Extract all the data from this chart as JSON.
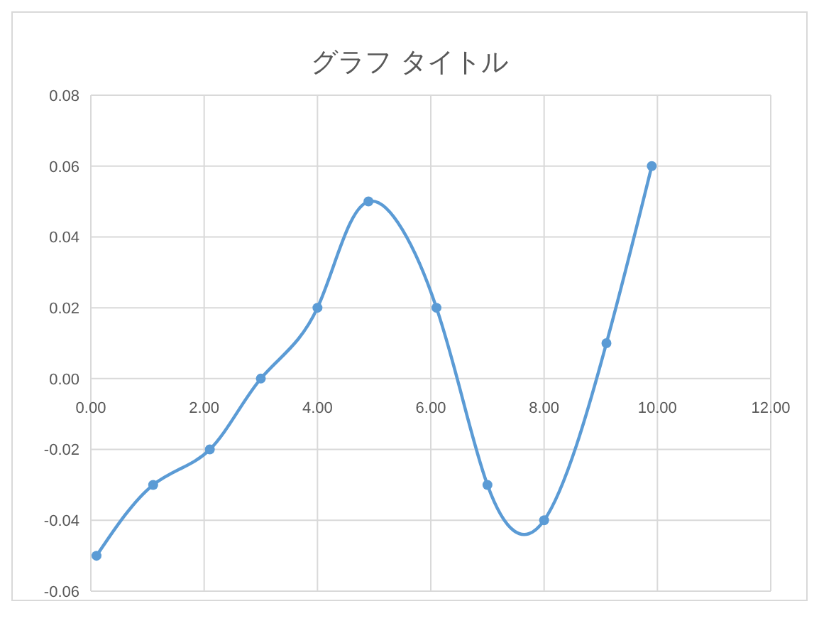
{
  "chart_data": {
    "type": "line",
    "title": "グラフ タイトル",
    "x": [
      0.1,
      1.1,
      2.1,
      3.0,
      4.0,
      4.9,
      6.1,
      7.0,
      8.0,
      9.1,
      9.9
    ],
    "series": [
      {
        "color": "#5b9bd5",
        "values": [
          -0.05,
          -0.03,
          -0.02,
          0,
          0.02,
          0.05,
          0.02,
          -0.03,
          -0.04,
          0.01,
          0.06
        ]
      }
    ],
    "xlim": [
      0,
      12
    ],
    "xticks": [
      {
        "value": 0,
        "label": "0.00"
      },
      {
        "value": 2,
        "label": "2.00"
      },
      {
        "value": 4,
        "label": "4.00"
      },
      {
        "value": 6,
        "label": "6.00"
      },
      {
        "value": 8,
        "label": "8.00"
      },
      {
        "value": 10,
        "label": "10.00"
      },
      {
        "value": 12,
        "label": "12.00"
      }
    ],
    "ylim": [
      -0.06,
      0.08
    ],
    "yticks": [
      {
        "value": -0.06,
        "label": "-0.06"
      },
      {
        "value": -0.04,
        "label": "-0.04"
      },
      {
        "value": -0.02,
        "label": "-0.02"
      },
      {
        "value": 0,
        "label": "0.00"
      },
      {
        "value": 0.02,
        "label": "0.02"
      },
      {
        "value": 0.04,
        "label": "0.04"
      },
      {
        "value": 0.06,
        "label": "0.06"
      },
      {
        "value": 0.08,
        "label": "0.08"
      }
    ],
    "grid": true,
    "marker": "circle",
    "line_style": "solid",
    "legend": false
  }
}
